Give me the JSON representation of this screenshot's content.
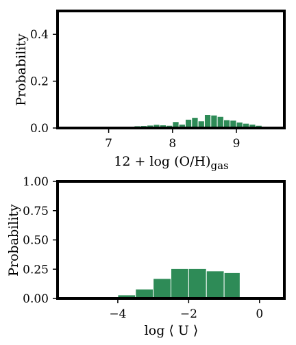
{
  "chart_data": [
    {
      "type": "bar",
      "ylabel": "Probability",
      "xlabel_main": "12 + log (O/H)",
      "xlabel_sub": "gas",
      "xlim": [
        6.2,
        9.75
      ],
      "ylim": [
        0,
        0.5
      ],
      "xticks": [
        7,
        8,
        9
      ],
      "yticks": [
        0.0,
        0.2,
        0.4
      ],
      "ytick_labels": [
        "0.0",
        "0.2",
        "0.4"
      ],
      "bar_color": "#2e8b57",
      "bins": [
        {
          "x0": 6.7,
          "x1": 6.8,
          "y": 0.001
        },
        {
          "x0": 6.8,
          "x1": 6.9,
          "y": 0.002
        },
        {
          "x0": 6.9,
          "x1": 7.0,
          "y": 0.003
        },
        {
          "x0": 7.0,
          "x1": 7.1,
          "y": 0.003
        },
        {
          "x0": 7.1,
          "x1": 7.2,
          "y": 0.006
        },
        {
          "x0": 7.2,
          "x1": 7.3,
          "y": 0.007
        },
        {
          "x0": 7.3,
          "x1": 7.4,
          "y": 0.006
        },
        {
          "x0": 7.4,
          "x1": 7.5,
          "y": 0.009
        },
        {
          "x0": 7.5,
          "x1": 7.6,
          "y": 0.01
        },
        {
          "x0": 7.6,
          "x1": 7.7,
          "y": 0.012
        },
        {
          "x0": 7.7,
          "x1": 7.8,
          "y": 0.015
        },
        {
          "x0": 7.8,
          "x1": 7.9,
          "y": 0.013
        },
        {
          "x0": 7.9,
          "x1": 8.0,
          "y": 0.011
        },
        {
          "x0": 8.0,
          "x1": 8.1,
          "y": 0.027
        },
        {
          "x0": 8.1,
          "x1": 8.2,
          "y": 0.016
        },
        {
          "x0": 8.2,
          "x1": 8.3,
          "y": 0.037
        },
        {
          "x0": 8.3,
          "x1": 8.4,
          "y": 0.045
        },
        {
          "x0": 8.4,
          "x1": 8.5,
          "y": 0.03
        },
        {
          "x0": 8.5,
          "x1": 8.6,
          "y": 0.057
        },
        {
          "x0": 8.6,
          "x1": 8.7,
          "y": 0.055
        },
        {
          "x0": 8.7,
          "x1": 8.8,
          "y": 0.049
        },
        {
          "x0": 8.8,
          "x1": 8.9,
          "y": 0.035
        },
        {
          "x0": 8.9,
          "x1": 9.0,
          "y": 0.033
        },
        {
          "x0": 9.0,
          "x1": 9.1,
          "y": 0.025
        },
        {
          "x0": 9.1,
          "x1": 9.2,
          "y": 0.02
        },
        {
          "x0": 9.2,
          "x1": 9.3,
          "y": 0.016
        },
        {
          "x0": 9.3,
          "x1": 9.4,
          "y": 0.011
        },
        {
          "x0": 9.4,
          "x1": 9.5,
          "y": 0.006
        },
        {
          "x0": 9.5,
          "x1": 9.6,
          "y": 0.002
        }
      ]
    },
    {
      "type": "bar",
      "ylabel": "Probability",
      "xlabel": "log ⟨ U ⟩",
      "xlim": [
        -5.7,
        0.7
      ],
      "ylim": [
        0,
        1.0
      ],
      "xticks": [
        -4,
        -2,
        0
      ],
      "xtick_labels": [
        "−4",
        "−2",
        "0"
      ],
      "yticks": [
        0.0,
        0.25,
        0.5,
        0.75,
        1.0
      ],
      "ytick_labels": [
        "0.00",
        "0.25",
        "0.50",
        "0.75",
        "1.00"
      ],
      "bar_color": "#2e8b57",
      "bins": [
        {
          "x0": -4.0,
          "x1": -3.5,
          "y": 0.03
        },
        {
          "x0": -3.5,
          "x1": -3.0,
          "y": 0.08
        },
        {
          "x0": -3.0,
          "x1": -2.5,
          "y": 0.17
        },
        {
          "x0": -2.5,
          "x1": -2.0,
          "y": 0.255
        },
        {
          "x0": -2.0,
          "x1": -1.5,
          "y": 0.255
        },
        {
          "x0": -1.5,
          "x1": -1.0,
          "y": 0.235
        },
        {
          "x0": -1.0,
          "x1": -0.55,
          "y": 0.22
        }
      ]
    }
  ]
}
